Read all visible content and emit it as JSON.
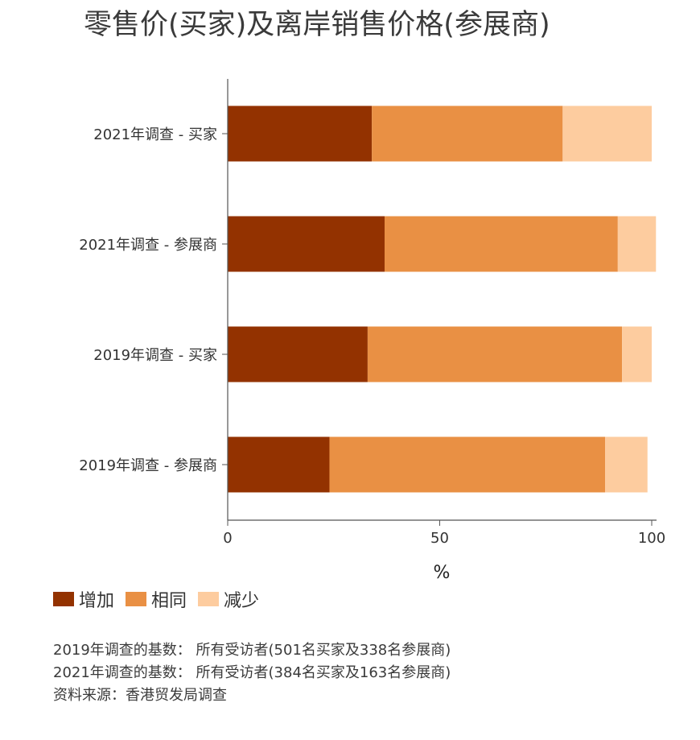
{
  "chart_data": {
    "type": "bar",
    "orientation": "horizontal",
    "stacked": true,
    "title": "零售价(买家)及离岸销售价格(参展商)",
    "xlabel": "%",
    "xlim": [
      0,
      100
    ],
    "xticks": [
      "0",
      "50",
      "100"
    ],
    "categories": [
      "2021年调查 - 买家",
      "2021年调查 - 参展商",
      "2019年调查 - 买家",
      "2019年调查 - 参展商"
    ],
    "series": [
      {
        "name": "增加",
        "color": "#933200",
        "values": [
          34,
          37,
          33,
          24
        ]
      },
      {
        "name": "相同",
        "color": "#e99044",
        "values": [
          45,
          55,
          60,
          65
        ]
      },
      {
        "name": "减少",
        "color": "#fdcc9f",
        "values": [
          21,
          9,
          7,
          10
        ]
      }
    ],
    "legend": "bottom-left",
    "grid": false
  },
  "notes": [
    "2019年调查的基数： 所有受访者(501名买家及338名参展商)",
    "2021年调查的基数： 所有受访者(384名买家及163名参展商)",
    "资料来源：香港贸发局调查"
  ]
}
